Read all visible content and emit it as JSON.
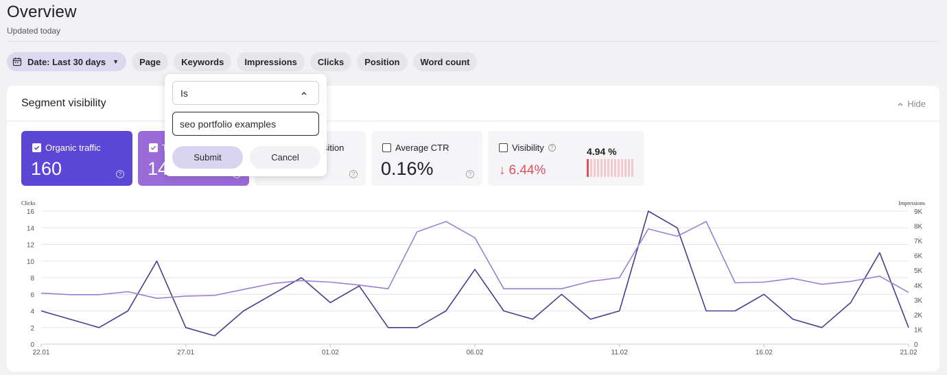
{
  "header": {
    "title": "Overview",
    "subtitle": "Updated today"
  },
  "filters": {
    "date_label": "Date: Last 30 days",
    "chips": [
      "Page",
      "Keywords",
      "Impressions",
      "Clicks",
      "Position",
      "Word count"
    ]
  },
  "panel": {
    "title": "Segment visibility",
    "hide_label": "Hide"
  },
  "cards": {
    "organic": {
      "label": "Organic traffic",
      "value": "160"
    },
    "second": {
      "label": "T",
      "value": "14"
    },
    "third": {
      "label": "sition"
    },
    "ctr": {
      "label": "Average CTR",
      "value": "0.16%"
    },
    "visibility": {
      "label": "Visibility",
      "change": "6.44%",
      "value": "4.94 %"
    }
  },
  "popover": {
    "operator": "Is",
    "input_value": "seo portfolio examples",
    "submit_label": "Submit",
    "cancel_label": "Cancel"
  },
  "colors": {
    "clicks": "#4c3a8f",
    "impressions": "#9b7fce",
    "accent": "#5b46d6",
    "negative": "#e0505a"
  },
  "chart_data": {
    "type": "line",
    "ylabel": "Clicks",
    "y2label": "Impressions",
    "ylim": [
      0,
      16
    ],
    "y2lim": [
      0,
      9000
    ],
    "yticks": [
      "0",
      "2",
      "4",
      "6",
      "8",
      "10",
      "12",
      "14",
      "16"
    ],
    "y2ticks": [
      "0",
      "1K",
      "2K",
      "3K",
      "4K",
      "5K",
      "6K",
      "7K",
      "8K",
      "9K"
    ],
    "xtick_labels": [
      "22.01",
      "27.01",
      "01.02",
      "06.02",
      "11.02",
      "16.02",
      "21.02"
    ],
    "xtick_index": [
      0,
      5,
      10,
      15,
      20,
      25,
      30
    ],
    "series": [
      {
        "name": "Clicks",
        "axis": "left",
        "values": [
          4,
          3,
          2,
          4,
          10,
          2,
          1,
          4,
          6,
          8,
          5,
          7,
          2,
          2,
          4,
          9,
          4,
          3,
          6,
          3,
          4,
          16,
          14,
          4,
          4,
          6,
          3,
          2,
          5,
          11,
          2
        ]
      },
      {
        "name": "Impressions",
        "axis": "right",
        "values": [
          3450,
          3350,
          3350,
          3550,
          3100,
          3250,
          3300,
          3700,
          4100,
          4300,
          4200,
          4000,
          3750,
          7600,
          8300,
          7200,
          3750,
          3750,
          3750,
          4250,
          4500,
          7800,
          7300,
          8300,
          4150,
          4200,
          4450,
          4050,
          4250,
          4600,
          3500
        ]
      }
    ]
  }
}
